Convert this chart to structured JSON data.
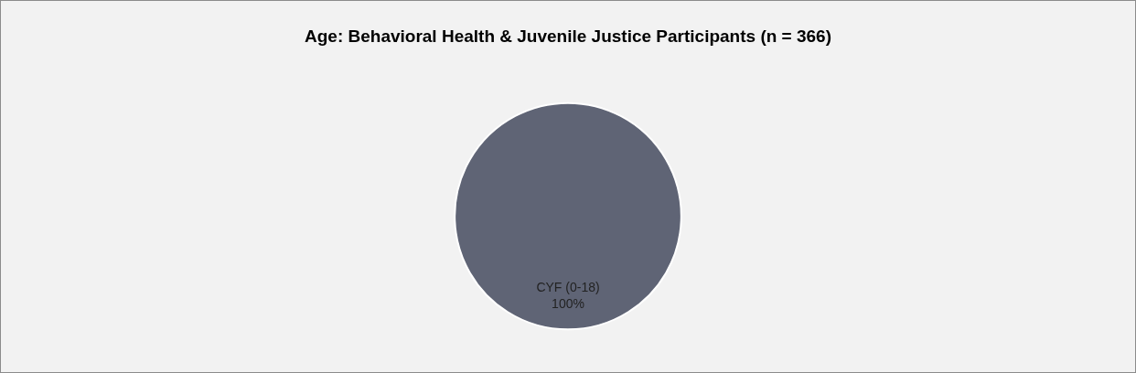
{
  "chart_data": {
    "type": "pie",
    "title": "Age: Behavioral Health & Juvenile Justice Participants (n = 366)",
    "categories": [
      "CYF (0-18)"
    ],
    "values": [
      100
    ],
    "colors": [
      "#5f6475"
    ],
    "value_labels": [
      "100%"
    ]
  }
}
